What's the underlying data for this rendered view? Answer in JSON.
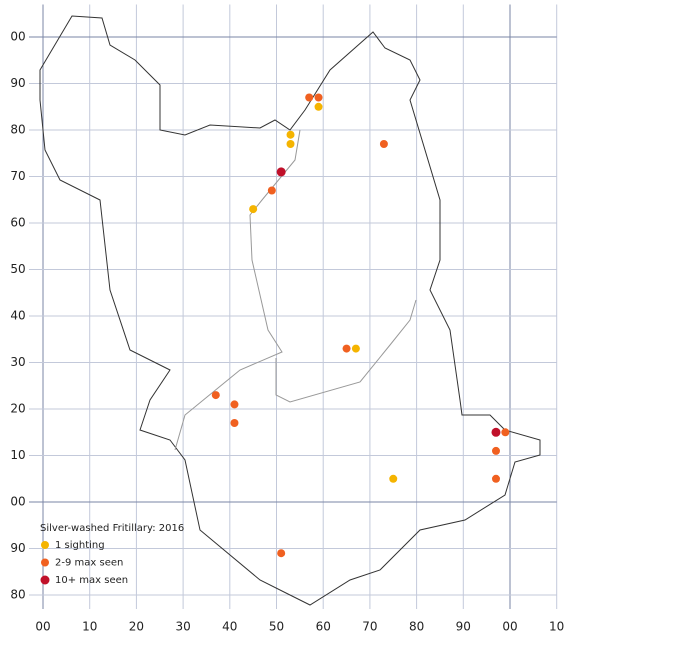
{
  "chart_data": {
    "type": "scatter",
    "xlim": [
      -3,
      110
    ],
    "ylim": [
      -23,
      107
    ],
    "xticks": [
      {
        "value": 0,
        "label": "00"
      },
      10,
      20,
      30,
      40,
      50,
      60,
      70,
      80,
      90,
      {
        "value": 100,
        "label": "00"
      },
      {
        "value": 110,
        "label": "10"
      }
    ],
    "yticks": [
      {
        "value": 100,
        "label": "00"
      },
      90,
      80,
      70,
      60,
      50,
      40,
      30,
      20,
      10,
      {
        "value": 0,
        "label": "00"
      },
      {
        "value": -10,
        "label": "90"
      },
      {
        "value": -20,
        "label": "80"
      }
    ],
    "grid": true,
    "legend_title": "Silver-washed Fritillary:  2016",
    "series": [
      {
        "name": "1 sighting",
        "color": "#f5b400",
        "x": [
          53,
          53,
          59,
          45,
          67,
          75
        ],
        "values": [
          79,
          77,
          85,
          63,
          33,
          5
        ]
      },
      {
        "name": "2-9 max seen",
        "color": "#f06020",
        "x": [
          57,
          59,
          73,
          49,
          65,
          37,
          41,
          41,
          99,
          97,
          97,
          51
        ],
        "values": [
          87,
          87,
          77,
          67,
          33,
          23,
          21,
          17,
          15,
          11,
          5,
          -11
        ]
      },
      {
        "name": "10+ max seen",
        "color": "#c0102a",
        "x": [
          51,
          97
        ],
        "values": [
          71,
          15
        ]
      }
    ]
  }
}
